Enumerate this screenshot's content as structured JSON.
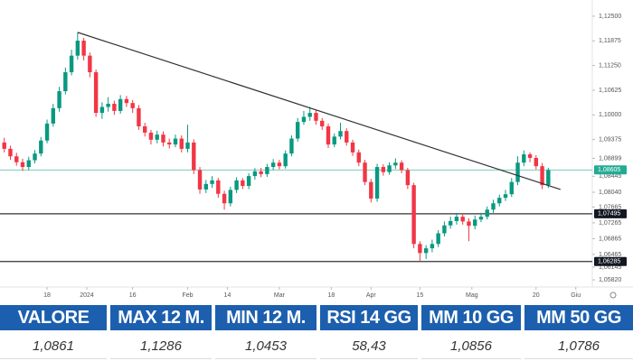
{
  "chart_data": {
    "type": "candlestick",
    "open": [
      1.093,
      1.0914,
      1.0895,
      1.088,
      1.0868,
      1.0885,
      1.0902,
      1.0935,
      1.0978,
      1.1017,
      1.106,
      1.1108,
      1.115,
      1.1188,
      1.115,
      1.1108,
      1.1005,
      1.102,
      1.1028,
      1.101,
      1.104,
      1.103,
      1.1017,
      1.0971,
      1.0955,
      1.0937,
      1.095,
      1.093,
      1.0925,
      1.094,
      1.0914,
      1.093,
      1.086,
      1.0811,
      1.0825,
      1.0834,
      1.08,
      1.0776,
      1.081,
      1.0834,
      1.082,
      1.0845,
      1.0857,
      1.085,
      1.0868,
      1.0879,
      1.087,
      1.0902,
      1.094,
      1.0982,
      1.0995,
      1.1005,
      1.0985,
      1.0971,
      1.0925,
      1.0945,
      1.0959,
      1.093,
      1.0905,
      1.0879,
      1.083,
      1.0788,
      1.0868,
      1.0855,
      1.0872,
      1.0879,
      1.086,
      1.0822,
      1.0673,
      1.065,
      1.0662,
      1.0673,
      1.07,
      1.072,
      1.0731,
      1.0742,
      1.073,
      1.0719,
      1.0735,
      1.0742,
      1.076,
      1.0776,
      1.079,
      1.0799,
      1.083,
      1.0879,
      1.09,
      1.0891,
      1.087,
      1.0822
    ],
    "high": [
      1.0942,
      1.0922,
      1.0904,
      1.0889,
      1.0894,
      1.0911,
      1.0944,
      1.0988,
      1.1028,
      1.1071,
      1.112,
      1.1165,
      1.1209,
      1.1195,
      1.1158,
      1.1115,
      1.1032,
      1.1045,
      1.1036,
      1.105,
      1.1048,
      1.1038,
      1.1025,
      1.098,
      1.0962,
      1.096,
      1.0958,
      1.094,
      1.095,
      1.0948,
      1.0975,
      1.0938,
      1.0868,
      1.0835,
      1.0845,
      1.084,
      1.0808,
      1.0818,
      1.0842,
      1.084,
      1.0852,
      1.0865,
      1.0866,
      1.0876,
      1.0888,
      1.0886,
      1.091,
      1.0948,
      1.0992,
      1.101,
      1.102,
      1.1012,
      1.0992,
      1.0978,
      1.0953,
      1.098,
      1.0966,
      1.0937,
      1.0912,
      1.0886,
      1.0838,
      1.0876,
      1.0875,
      1.088,
      1.089,
      1.0885,
      1.0866,
      1.0828,
      1.068,
      1.067,
      1.0684,
      1.0708,
      1.073,
      1.0742,
      1.0752,
      1.075,
      1.0738,
      1.0745,
      1.0752,
      1.0768,
      1.0785,
      1.0798,
      1.081,
      1.084,
      1.0895,
      1.091,
      1.0905,
      1.0898,
      1.0878,
      1.0866
    ],
    "low": [
      1.0905,
      1.0886,
      1.0871,
      1.0858,
      1.086,
      1.0877,
      1.0895,
      1.0928,
      1.097,
      1.1008,
      1.1052,
      1.11,
      1.114,
      1.1138,
      1.1095,
      1.0995,
      1.099,
      1.1008,
      1.1,
      1.1003,
      1.102,
      1.1005,
      1.0962,
      1.0945,
      1.0925,
      1.0928,
      1.092,
      1.0915,
      1.0918,
      1.0905,
      1.0905,
      1.085,
      1.08,
      1.0802,
      1.0815,
      1.079,
      1.076,
      1.0768,
      1.0802,
      1.0812,
      1.0812,
      1.0836,
      1.0842,
      1.0843,
      1.086,
      1.0862,
      1.0864,
      1.0895,
      1.0932,
      1.0975,
      1.0985,
      1.0975,
      1.0962,
      1.0916,
      1.0918,
      1.0938,
      1.0922,
      1.0896,
      1.087,
      1.0822,
      1.0778,
      1.078,
      1.0846,
      1.0848,
      1.0863,
      1.0852,
      1.0812,
      1.0662,
      1.063,
      1.0635,
      1.0652,
      1.0665,
      1.0692,
      1.0712,
      1.0722,
      1.0722,
      1.068,
      1.071,
      1.0728,
      1.0735,
      1.0752,
      1.0768,
      1.0782,
      1.0792,
      1.0822,
      1.087,
      1.088,
      1.0862,
      1.0812,
      1.0815
    ],
    "close": [
      1.0914,
      1.0895,
      1.088,
      1.0868,
      1.0885,
      1.0902,
      1.0935,
      1.0978,
      1.1017,
      1.106,
      1.1108,
      1.115,
      1.1188,
      1.115,
      1.1108,
      1.1005,
      1.102,
      1.1028,
      1.101,
      1.104,
      1.103,
      1.1017,
      1.0971,
      1.0955,
      1.0937,
      1.095,
      1.093,
      1.0925,
      1.094,
      1.0914,
      1.093,
      1.086,
      1.0811,
      1.0825,
      1.0834,
      1.08,
      1.0776,
      1.081,
      1.0834,
      1.082,
      1.0845,
      1.0857,
      1.085,
      1.0868,
      1.0879,
      1.087,
      1.0902,
      1.094,
      1.0982,
      1.0995,
      1.1005,
      1.0985,
      1.0971,
      1.0925,
      1.0945,
      1.0959,
      1.093,
      1.0905,
      1.0879,
      1.083,
      1.0788,
      1.0868,
      1.0855,
      1.0872,
      1.0879,
      1.086,
      1.0822,
      1.0673,
      1.065,
      1.0662,
      1.0673,
      1.07,
      1.072,
      1.0731,
      1.0742,
      1.073,
      1.0719,
      1.0735,
      1.0742,
      1.076,
      1.0776,
      1.079,
      1.0799,
      1.083,
      1.0879,
      1.09,
      1.0891,
      1.087,
      1.0822,
      1.086
    ],
    "up_color": "#089981",
    "down_color": "#f23645",
    "xlim": [
      -0.7,
      96.2
    ],
    "xticks": [
      {
        "value": 7,
        "label": "18"
      },
      {
        "value": 13.5,
        "label": "2024"
      },
      {
        "value": 21,
        "label": "16"
      },
      {
        "value": 30,
        "label": "Feb"
      },
      {
        "value": 36.5,
        "label": "14"
      },
      {
        "value": 45,
        "label": "Mar"
      },
      {
        "value": 53.5,
        "label": "18"
      },
      {
        "value": 60,
        "label": "Apr"
      },
      {
        "value": 68,
        "label": "15"
      },
      {
        "value": 76.5,
        "label": "Mag"
      },
      {
        "value": 87,
        "label": "20"
      },
      {
        "value": 93.5,
        "label": "Giu"
      }
    ],
    "ylim": [
      1.0564,
      1.1291
    ],
    "yticks": [
      {
        "value": 1.125,
        "label": "1,12500"
      },
      {
        "value": 1.11875,
        "label": "1,11875"
      },
      {
        "value": 1.1125,
        "label": "1,11250"
      },
      {
        "value": 1.10625,
        "label": "1,10625"
      },
      {
        "value": 1.1,
        "label": "1,10000"
      },
      {
        "value": 1.09375,
        "label": "1,09375"
      },
      {
        "value": 1.08899,
        "label": "1,08899"
      },
      {
        "value": 1.08445,
        "label": "1,08445"
      },
      {
        "value": 1.0804,
        "label": "1,08040"
      },
      {
        "value": 1.07665,
        "label": "1,07665"
      },
      {
        "value": 1.07265,
        "label": "1,07265"
      },
      {
        "value": 1.06865,
        "label": "1,06865"
      },
      {
        "value": 1.06465,
        "label": "1,06465"
      },
      {
        "value": 1.06145,
        "label": "1,06145"
      },
      {
        "value": 1.0582,
        "label": "1,05820"
      }
    ],
    "last_price": {
      "value": 1.08605,
      "label": "1,08605",
      "color": "#22ab94"
    },
    "levels": [
      {
        "value": 1.07495,
        "label": "1,07495"
      },
      {
        "value": 1.06285,
        "label": "1,06285"
      }
    ],
    "trendline": {
      "x": [
        12,
        91
      ],
      "y": [
        1.1209,
        1.0811
      ]
    }
  },
  "table": {
    "headers": [
      "VALORE",
      "MAX 12 M.",
      "MIN 12 M.",
      "RSI 14 GG",
      "MM 10 GG",
      "MM 50 GG"
    ],
    "values": [
      "1,0861",
      "1,1286",
      "1,0453",
      "58,43",
      "1,0856",
      "1,0786"
    ]
  }
}
